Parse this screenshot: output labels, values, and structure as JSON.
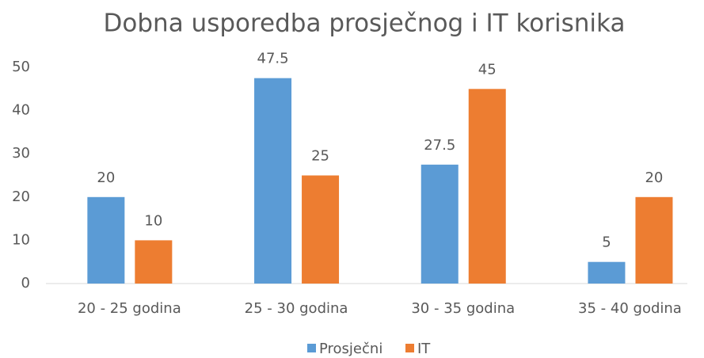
{
  "chart_data": {
    "type": "bar",
    "title": "Dobna usporedba prosječnog i IT korisnika",
    "categories": [
      "20 - 25 godina",
      "25 - 30 godina",
      "30 - 35 godina",
      "35 - 40 godina"
    ],
    "series": [
      {
        "name": "Prosječni",
        "color": "#5b9bd5",
        "values": [
          20,
          47.5,
          27.5,
          5
        ]
      },
      {
        "name": "IT",
        "color": "#ed7d31",
        "values": [
          10,
          25,
          45,
          20
        ]
      }
    ],
    "ylim": [
      0,
      50
    ],
    "yticks": [
      0,
      10,
      20,
      30,
      40,
      50
    ],
    "grid": false,
    "legend": "bottom"
  }
}
